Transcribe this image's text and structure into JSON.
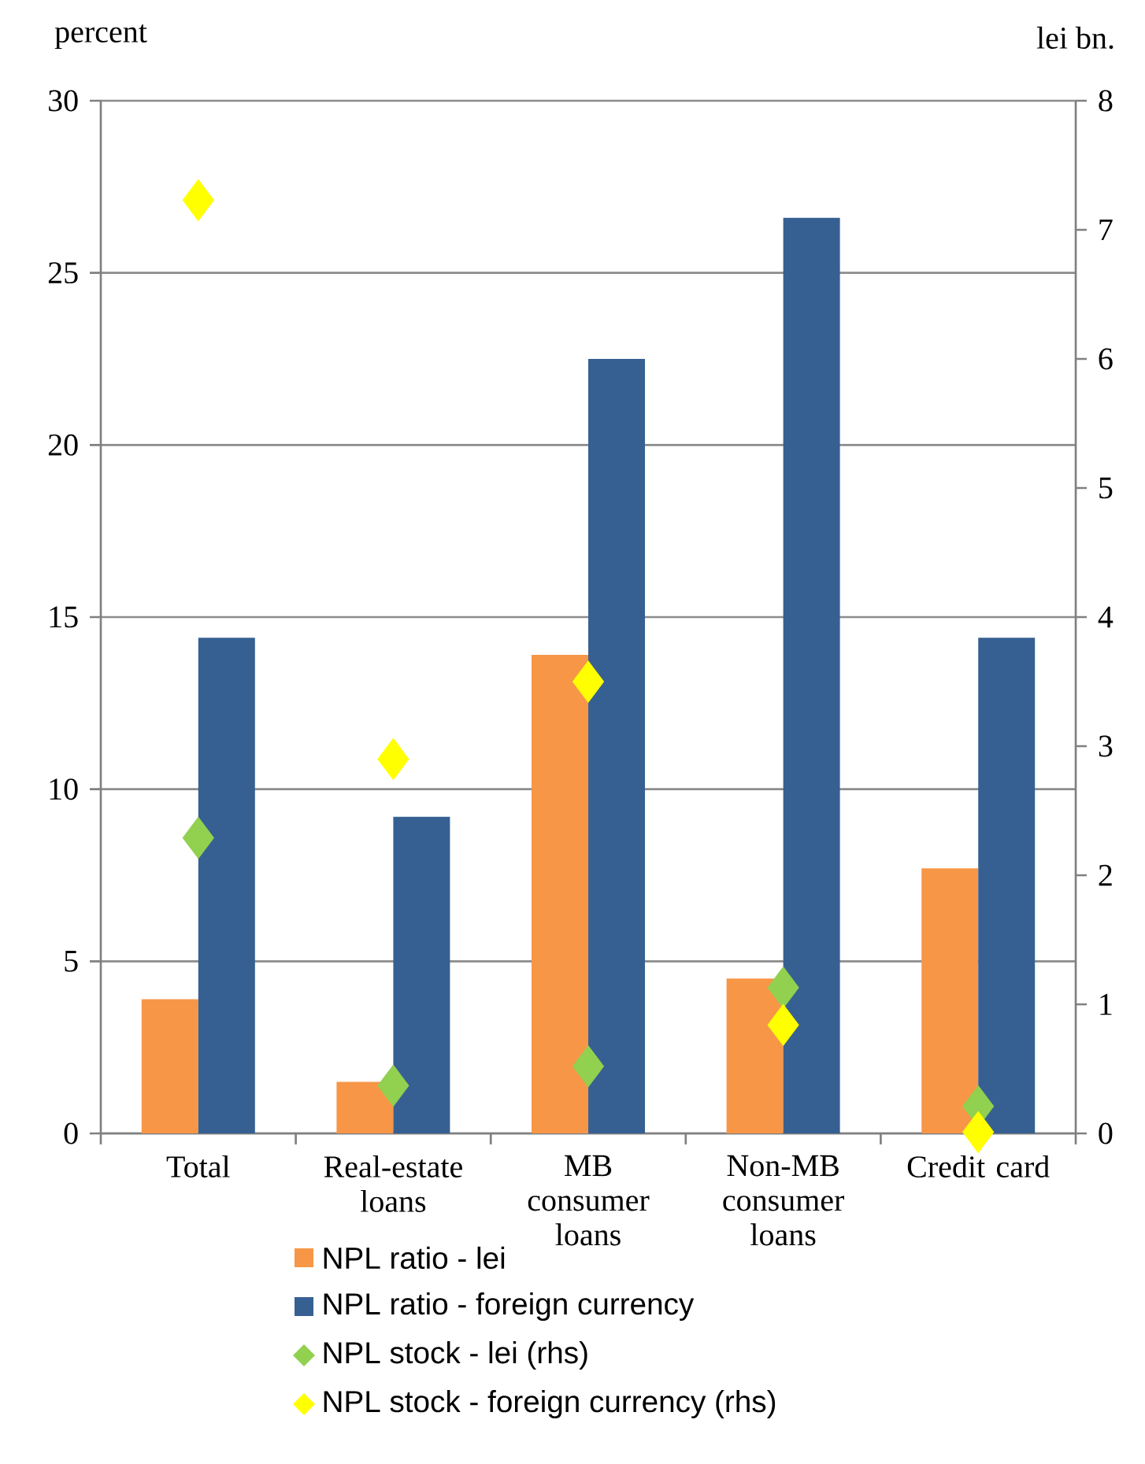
{
  "chart_data": {
    "type": "bar",
    "ylabel": "percent",
    "y2label": "lei bn.",
    "categories": [
      "Total",
      "Real-estate loans",
      "MB consumer loans",
      "Non-MB consumer loans",
      "Credit card"
    ],
    "series": [
      {
        "name": "NPL ratio - lei",
        "color": "#f79646",
        "values": [
          3.9,
          1.5,
          13.9,
          4.5,
          7.7
        ]
      },
      {
        "name": "NPL ratio - foreign currency",
        "color": "#366092",
        "values": [
          14.4,
          9.2,
          22.5,
          26.6,
          14.4
        ]
      },
      {
        "name": "NPL stock - lei (rhs)",
        "type": "scatter",
        "axis": "y2",
        "color": "#92d050",
        "values": [
          2.29,
          0.37,
          0.52,
          1.13,
          0.21
        ]
      },
      {
        "name": "NPL stock - foreign currency (rhs)",
        "type": "scatter",
        "axis": "y2",
        "color": "#ffff00",
        "values": [
          7.23,
          2.9,
          3.5,
          0.84,
          0.01
        ]
      }
    ],
    "ylim": [
      0,
      30
    ],
    "yticks": [
      0,
      5,
      10,
      15,
      20,
      25,
      30
    ],
    "y2lim": [
      0,
      8
    ],
    "y2ticks": [
      0,
      1,
      2,
      3,
      4,
      5,
      6,
      7,
      8
    ],
    "grid": "y",
    "legend": "bottom",
    "marker": "diamond"
  }
}
